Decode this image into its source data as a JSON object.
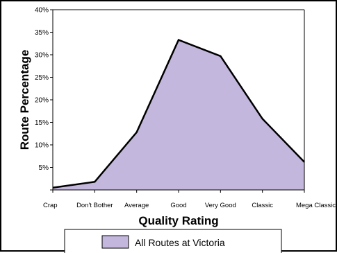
{
  "chart_data": {
    "type": "area",
    "categories": [
      "Crap",
      "Don't Bother",
      "Average",
      "Good",
      "Very Good",
      "Classic",
      "Mega Classic"
    ],
    "series": [
      {
        "name": "All Routes at Victoria",
        "values": [
          0.5,
          1.8,
          12.8,
          33.3,
          29.7,
          15.8,
          6.2
        ]
      }
    ],
    "xlabel": "Quality Rating",
    "ylabel": "Route Percentage",
    "ylim": [
      0,
      40
    ],
    "yticks": [
      "",
      "5%",
      "10%",
      "15%",
      "20%",
      "25%",
      "30%",
      "35%",
      "40%"
    ],
    "grid": false,
    "legend": "bottom",
    "colors": {
      "fill": "#c4b7dd",
      "line": "#000000",
      "background": "#ffffff"
    }
  }
}
